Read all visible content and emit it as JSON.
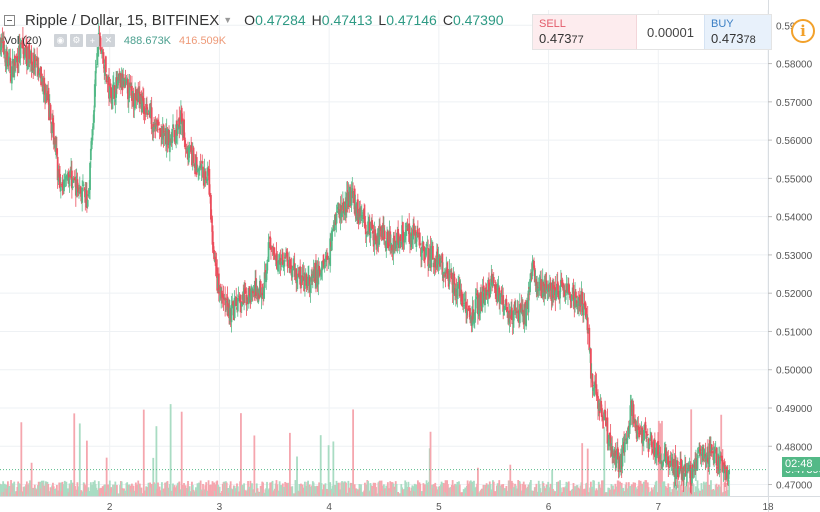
{
  "header": {
    "symbol": "Ripple / Dollar, 15, BITFINEX",
    "ohlc": [
      {
        "key": "O",
        "value": "0.47284"
      },
      {
        "key": "H",
        "value": "0.47413"
      },
      {
        "key": "L",
        "value": "0.47146"
      },
      {
        "key": "C",
        "value": "0.47390"
      }
    ]
  },
  "volume": {
    "label": "Vol (20)",
    "value_a": "488.673K",
    "value_b": "416.509K"
  },
  "trade_panel": {
    "sell_label": "SELL",
    "sell_price_main": "0.473",
    "sell_price_tail": "77",
    "spread": "0.00001",
    "buy_label": "BUY",
    "buy_price_main": "0.473",
    "buy_price_tail": "78"
  },
  "price_tags": {
    "last_price": "0.47390",
    "countdown": "02:48"
  },
  "colors": {
    "up": "#53b987",
    "down": "#eb4d5c",
    "vol_up": "#a9dcc3",
    "vol_down": "#f5a6ae",
    "grid": "#eef1f4",
    "accent": "#f2a12b"
  },
  "chart_data": {
    "type": "candlestick",
    "title": "Ripple / Dollar, 15, BITFINEX",
    "x_ticks": [
      "2",
      "3",
      "4",
      "5",
      "6",
      "7",
      "18"
    ],
    "y_ticks": [
      "0.59000",
      "0.58000",
      "0.57000",
      "0.56000",
      "0.55000",
      "0.54000",
      "0.53000",
      "0.52000",
      "0.51000",
      "0.50000",
      "0.49000",
      "0.48000",
      "0.47000"
    ],
    "ylim": [
      0.467,
      0.594
    ],
    "xlim": [
      1.0,
      8.0
    ],
    "last_price": 0.4739,
    "close_path": [
      [
        1.0,
        0.586
      ],
      [
        1.1,
        0.578
      ],
      [
        1.2,
        0.584
      ],
      [
        1.3,
        0.58
      ],
      [
        1.4,
        0.574
      ],
      [
        1.5,
        0.56
      ],
      [
        1.55,
        0.545
      ],
      [
        1.6,
        0.552
      ],
      [
        1.7,
        0.548
      ],
      [
        1.8,
        0.544
      ],
      [
        1.87,
        0.575
      ],
      [
        1.9,
        0.587
      ],
      [
        2.0,
        0.572
      ],
      [
        2.1,
        0.575
      ],
      [
        2.2,
        0.572
      ],
      [
        2.3,
        0.57
      ],
      [
        2.4,
        0.565
      ],
      [
        2.5,
        0.56
      ],
      [
        2.6,
        0.562
      ],
      [
        2.65,
        0.565
      ],
      [
        2.7,
        0.558
      ],
      [
        2.8,
        0.552
      ],
      [
        2.9,
        0.55
      ],
      [
        2.95,
        0.528
      ],
      [
        3.0,
        0.52
      ],
      [
        3.1,
        0.515
      ],
      [
        3.2,
        0.518
      ],
      [
        3.3,
        0.52
      ],
      [
        3.4,
        0.522
      ],
      [
        3.45,
        0.533
      ],
      [
        3.5,
        0.528
      ],
      [
        3.6,
        0.53
      ],
      [
        3.7,
        0.525
      ],
      [
        3.8,
        0.522
      ],
      [
        3.9,
        0.525
      ],
      [
        4.0,
        0.53
      ],
      [
        4.05,
        0.54
      ],
      [
        4.15,
        0.543
      ],
      [
        4.2,
        0.546
      ],
      [
        4.25,
        0.542
      ],
      [
        4.3,
        0.54
      ],
      [
        4.4,
        0.535
      ],
      [
        4.5,
        0.535
      ],
      [
        4.6,
        0.533
      ],
      [
        4.7,
        0.537
      ],
      [
        4.8,
        0.534
      ],
      [
        4.9,
        0.53
      ],
      [
        5.0,
        0.528
      ],
      [
        5.1,
        0.524
      ],
      [
        5.2,
        0.52
      ],
      [
        5.3,
        0.514
      ],
      [
        5.4,
        0.52
      ],
      [
        5.5,
        0.522
      ],
      [
        5.6,
        0.516
      ],
      [
        5.7,
        0.514
      ],
      [
        5.8,
        0.515
      ],
      [
        5.85,
        0.528
      ],
      [
        5.9,
        0.522
      ],
      [
        6.0,
        0.52
      ],
      [
        6.1,
        0.521
      ],
      [
        6.2,
        0.519
      ],
      [
        6.3,
        0.518
      ],
      [
        6.35,
        0.514
      ],
      [
        6.4,
        0.495
      ],
      [
        6.45,
        0.492
      ],
      [
        6.5,
        0.488
      ],
      [
        6.55,
        0.482
      ],
      [
        6.6,
        0.478
      ],
      [
        6.65,
        0.475
      ],
      [
        6.7,
        0.482
      ],
      [
        6.75,
        0.49
      ],
      [
        6.8,
        0.485
      ],
      [
        6.9,
        0.482
      ],
      [
        7.0,
        0.478
      ],
      [
        7.1,
        0.476
      ],
      [
        7.2,
        0.474
      ],
      [
        7.3,
        0.472
      ],
      [
        7.4,
        0.478
      ],
      [
        7.5,
        0.478
      ],
      [
        7.6,
        0.474
      ],
      [
        7.65,
        0.4739
      ]
    ]
  }
}
